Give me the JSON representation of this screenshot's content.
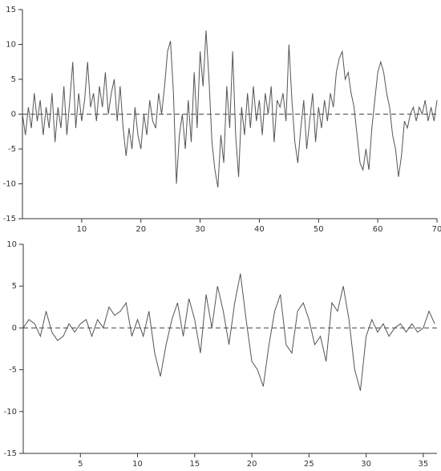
{
  "chart_data": [
    {
      "type": "line",
      "x": [
        0,
        0.5,
        1,
        1.5,
        2,
        2.5,
        3,
        3.5,
        4,
        4.5,
        5,
        5.5,
        6,
        6.5,
        7,
        7.5,
        8,
        8.5,
        9,
        9.5,
        10,
        10.5,
        11,
        11.5,
        12,
        12.5,
        13,
        13.5,
        14,
        14.5,
        15,
        15.5,
        16,
        16.5,
        17,
        17.5,
        18,
        18.5,
        19,
        19.5,
        20,
        20.5,
        21,
        21.5,
        22,
        22.5,
        23,
        23.5,
        24,
        24.5,
        25,
        25.5,
        26,
        26.5,
        27,
        27.5,
        28,
        28.5,
        29,
        29.5,
        30,
        30.5,
        31,
        31.5,
        32,
        32.5,
        33,
        33.5,
        34,
        34.5,
        35,
        35.5,
        36,
        36.5,
        37,
        37.5,
        38,
        38.5,
        39,
        39.5,
        40,
        40.5,
        41,
        41.5,
        42,
        42.5,
        43,
        43.5,
        44,
        44.5,
        45,
        45.5,
        46,
        46.5,
        47,
        47.5,
        48,
        48.5,
        49,
        49.5,
        50,
        50.5,
        51,
        51.5,
        52,
        52.5,
        53,
        53.5,
        54,
        54.5,
        55,
        55.5,
        56,
        56.5,
        57,
        57.5,
        58,
        58.5,
        59,
        59.5,
        60,
        60.5,
        61,
        61.5,
        62,
        62.5,
        63,
        63.5,
        64,
        64.5,
        65,
        65.5,
        66,
        66.5,
        67,
        67.5,
        68,
        68.5,
        69,
        69.5,
        70
      ],
      "series": [
        {
          "color": "#555555",
          "values": [
            0,
            -3,
            1,
            -2,
            3,
            -1,
            2,
            -3,
            1,
            -2,
            3,
            -4,
            1,
            -2,
            4,
            -3,
            2,
            7.5,
            -2,
            3,
            -1,
            2,
            7.5,
            1,
            3,
            -1,
            4,
            1,
            6,
            0,
            3,
            5,
            -1,
            4,
            -2,
            -6,
            -2,
            -5,
            1,
            -3,
            -5,
            0,
            -3,
            2,
            -1,
            -2,
            3,
            0,
            4,
            9,
            10.5,
            3,
            -10,
            -3,
            0,
            -5,
            2,
            -4,
            6,
            -2,
            9,
            4,
            12,
            5,
            -4,
            -8,
            -10.5,
            -3,
            -7,
            4,
            -2,
            9,
            -3,
            -9,
            1,
            -3,
            3,
            -2,
            4,
            -1,
            2,
            -3,
            3,
            0,
            4,
            -4,
            2,
            1,
            3,
            -1,
            10,
            2,
            -4,
            -7,
            -2,
            2,
            -5,
            -1,
            3,
            -4,
            1,
            -2,
            2,
            -1,
            3,
            1,
            6,
            8,
            9,
            5,
            6,
            3,
            1,
            -3,
            -7,
            -8,
            -5,
            -8,
            -2,
            2,
            6,
            7.5,
            6,
            3,
            1,
            -3,
            -5,
            -9,
            -6,
            -1,
            -2,
            0,
            1,
            -1,
            1,
            0,
            2,
            -1,
            1,
            -1,
            2
          ]
        }
      ],
      "xlim": [
        0,
        70
      ],
      "xticks": [
        10,
        20,
        30,
        40,
        50,
        60,
        70
      ],
      "ylim": [
        -15,
        15
      ],
      "yticks": [
        -15,
        -10,
        -5,
        0,
        5,
        10,
        15
      ],
      "reference_line": 0
    },
    {
      "type": "line",
      "x": [
        0,
        0.5,
        1,
        1.5,
        2,
        2.5,
        3,
        3.5,
        4,
        4.5,
        5,
        5.5,
        6,
        6.5,
        7,
        7.5,
        8,
        8.5,
        9,
        9.5,
        10,
        10.5,
        11,
        11.5,
        12,
        12.5,
        13,
        13.5,
        14,
        14.5,
        15,
        15.5,
        16,
        16.5,
        17,
        17.5,
        18,
        18.5,
        19,
        19.5,
        20,
        20.5,
        21,
        21.5,
        22,
        22.5,
        23,
        23.5,
        24,
        24.5,
        25,
        25.5,
        26,
        26.5,
        27,
        27.5,
        28,
        28.5,
        29,
        29.5,
        30,
        30.5,
        31,
        31.5,
        32,
        32.5,
        33,
        33.5,
        34,
        34.5,
        35,
        35.5,
        36
      ],
      "series": [
        {
          "color": "#555555",
          "values": [
            0,
            1,
            0.5,
            -1,
            2,
            -0.5,
            -1.5,
            -1,
            0.5,
            -0.5,
            0.5,
            1,
            -1,
            1,
            0,
            2.5,
            1.5,
            2,
            3,
            -1,
            1,
            -1,
            2,
            -3,
            -5.8,
            -2,
            1,
            3,
            -1,
            3.5,
            1,
            -3,
            4,
            0,
            5,
            2,
            -2,
            3,
            6.5,
            1,
            -4,
            -5,
            -7,
            -2,
            2,
            4,
            -2,
            -3,
            2,
            3,
            1,
            -2,
            -1,
            -4,
            3,
            2,
            5,
            1,
            -5,
            -7.5,
            -1,
            1,
            -0.5,
            0.5,
            -1,
            0,
            0.5,
            -0.5,
            0.5,
            -0.5,
            0,
            2,
            0.5
          ]
        }
      ],
      "xlim": [
        0,
        36.2
      ],
      "xticks": [
        5,
        10,
        15,
        20,
        25,
        30,
        35
      ],
      "ylim": [
        -15,
        10
      ],
      "yticks": [
        -15,
        -10,
        -5,
        0,
        5,
        10
      ],
      "reference_line": 0
    }
  ]
}
